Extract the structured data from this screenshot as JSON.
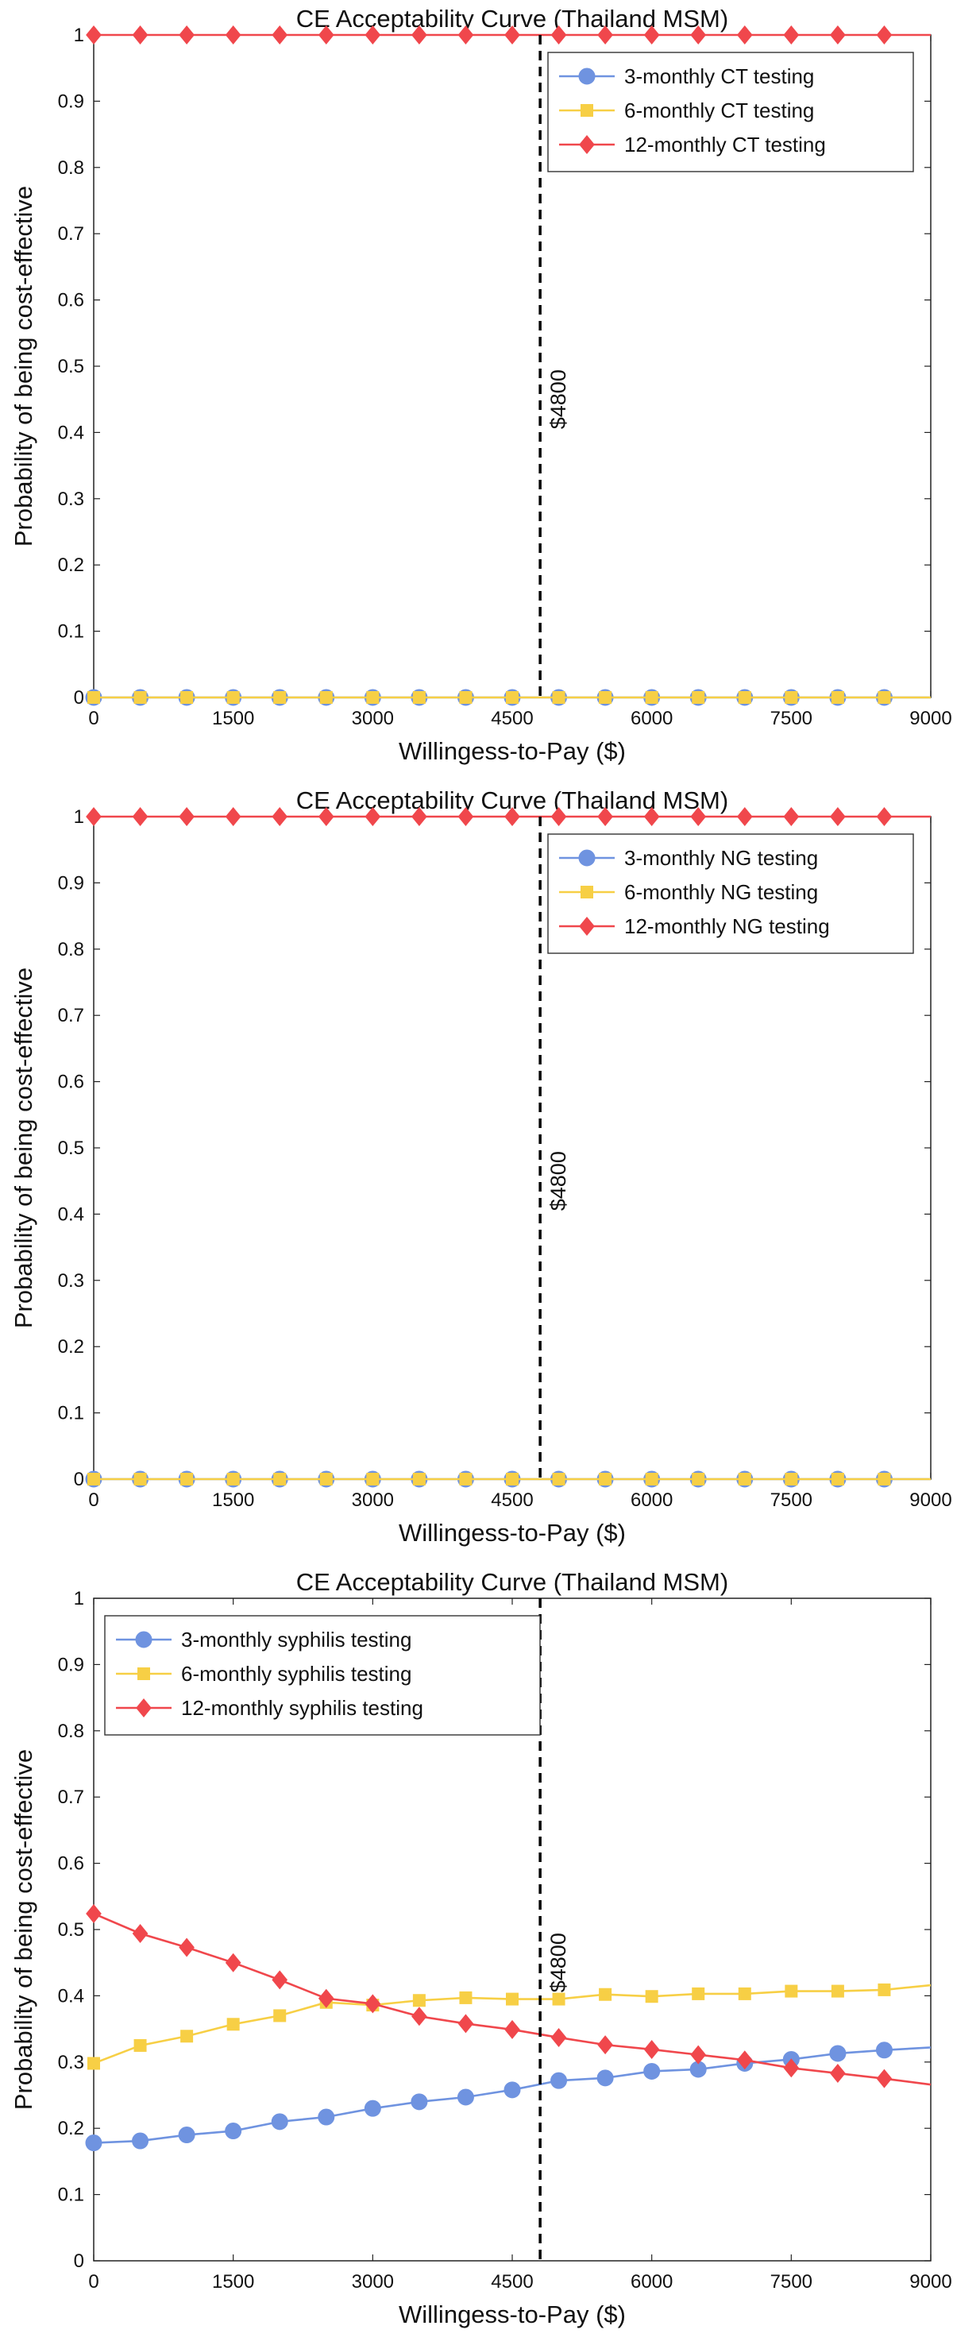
{
  "colors": {
    "series": [
      "#6f93e0",
      "#f7cf45",
      "#f0474c"
    ],
    "axis": "#222222",
    "annotation_line": "#000000"
  },
  "chart_data": [
    {
      "type": "line",
      "title": "CE Acceptability Curve (Thailand MSM)",
      "xlabel": "Willingess-to-Pay ($)",
      "ylabel": "Probability of being cost-effective",
      "xlim": [
        0,
        9000
      ],
      "ylim": [
        0,
        1
      ],
      "xticks": [
        "0",
        "1500",
        "3000",
        "4500",
        "6000",
        "7500",
        "9000"
      ],
      "yticks": [
        "0",
        "0.1",
        "0.2",
        "0.3",
        "0.4",
        "0.5",
        "0.6",
        "0.7",
        "0.8",
        "0.9",
        "1"
      ],
      "grid": false,
      "legend_position": "top-right",
      "annotation": {
        "x": 4800,
        "label": "$4800"
      },
      "x": [
        0,
        500,
        1000,
        1500,
        2000,
        2500,
        3000,
        3500,
        4000,
        4500,
        5000,
        5500,
        6000,
        6500,
        7000,
        7500,
        8000,
        8500,
        9000
      ],
      "series": [
        {
          "name": "3-monthly CT testing",
          "marker": "circle",
          "values": [
            0,
            0,
            0,
            0,
            0,
            0,
            0,
            0,
            0,
            0,
            0,
            0,
            0,
            0,
            0,
            0,
            0,
            0,
            0
          ]
        },
        {
          "name": "6-monthly CT testing",
          "marker": "square",
          "values": [
            0,
            0,
            0,
            0,
            0,
            0,
            0,
            0,
            0,
            0,
            0,
            0,
            0,
            0,
            0,
            0,
            0,
            0,
            0
          ]
        },
        {
          "name": "12-monthly CT testing",
          "marker": "diamond",
          "values": [
            1,
            1,
            1,
            1,
            1,
            1,
            1,
            1,
            1,
            1,
            1,
            1,
            1,
            1,
            1,
            1,
            1,
            1,
            1
          ]
        }
      ]
    },
    {
      "type": "line",
      "title": "CE Acceptability Curve (Thailand MSM)",
      "xlabel": "Willingess-to-Pay ($)",
      "ylabel": "Probability of being cost-effective",
      "xlim": [
        0,
        9000
      ],
      "ylim": [
        0,
        1
      ],
      "xticks": [
        "0",
        "1500",
        "3000",
        "4500",
        "6000",
        "7500",
        "9000"
      ],
      "yticks": [
        "0",
        "0.1",
        "0.2",
        "0.3",
        "0.4",
        "0.5",
        "0.6",
        "0.7",
        "0.8",
        "0.9",
        "1"
      ],
      "grid": false,
      "legend_position": "top-right",
      "annotation": {
        "x": 4800,
        "label": "$4800"
      },
      "x": [
        0,
        500,
        1000,
        1500,
        2000,
        2500,
        3000,
        3500,
        4000,
        4500,
        5000,
        5500,
        6000,
        6500,
        7000,
        7500,
        8000,
        8500,
        9000
      ],
      "series": [
        {
          "name": "3-monthly NG testing",
          "marker": "circle",
          "values": [
            0,
            0,
            0,
            0,
            0,
            0,
            0,
            0,
            0,
            0,
            0,
            0,
            0,
            0,
            0,
            0,
            0,
            0,
            0
          ]
        },
        {
          "name": "6-monthly NG testing",
          "marker": "square",
          "values": [
            0,
            0,
            0,
            0,
            0,
            0,
            0,
            0,
            0,
            0,
            0,
            0,
            0,
            0,
            0,
            0,
            0,
            0,
            0
          ]
        },
        {
          "name": "12-monthly NG testing",
          "marker": "diamond",
          "values": [
            1,
            1,
            1,
            1,
            1,
            1,
            1,
            1,
            1,
            1,
            1,
            1,
            1,
            1,
            1,
            1,
            1,
            1,
            1
          ]
        }
      ]
    },
    {
      "type": "line",
      "title": "CE Acceptability Curve (Thailand MSM)",
      "xlabel": "Willingess-to-Pay ($)",
      "ylabel": "Probability of being cost-effective",
      "xlim": [
        0,
        9000
      ],
      "ylim": [
        0,
        1
      ],
      "xticks": [
        "0",
        "1500",
        "3000",
        "4500",
        "6000",
        "7500",
        "9000"
      ],
      "yticks": [
        "0",
        "0.1",
        "0.2",
        "0.3",
        "0.4",
        "0.5",
        "0.6",
        "0.7",
        "0.8",
        "0.9",
        "1"
      ],
      "grid": false,
      "legend_position": "top-left",
      "annotation": {
        "x": 4800,
        "label": "$4800"
      },
      "x": [
        0,
        500,
        1000,
        1500,
        2000,
        2500,
        3000,
        3500,
        4000,
        4500,
        5000,
        5500,
        6000,
        6500,
        7000,
        7500,
        8000,
        8500,
        9000
      ],
      "series": [
        {
          "name": "3-monthly syphilis testing",
          "marker": "circle",
          "values": [
            0.178,
            0.181,
            0.19,
            0.196,
            0.21,
            0.217,
            0.23,
            0.24,
            0.247,
            0.258,
            0.272,
            0.276,
            0.286,
            0.289,
            0.298,
            0.304,
            0.313,
            0.318,
            0.322
          ]
        },
        {
          "name": "6-monthly syphilis testing",
          "marker": "square",
          "values": [
            0.298,
            0.325,
            0.339,
            0.357,
            0.37,
            0.39,
            0.386,
            0.393,
            0.397,
            0.395,
            0.395,
            0.402,
            0.399,
            0.403,
            0.403,
            0.407,
            0.407,
            0.409,
            0.416
          ]
        },
        {
          "name": "12-monthly syphilis testing",
          "marker": "diamond",
          "values": [
            0.524,
            0.494,
            0.473,
            0.45,
            0.424,
            0.396,
            0.388,
            0.369,
            0.358,
            0.349,
            0.337,
            0.326,
            0.319,
            0.311,
            0.303,
            0.291,
            0.283,
            0.275,
            0.266
          ]
        }
      ]
    }
  ]
}
